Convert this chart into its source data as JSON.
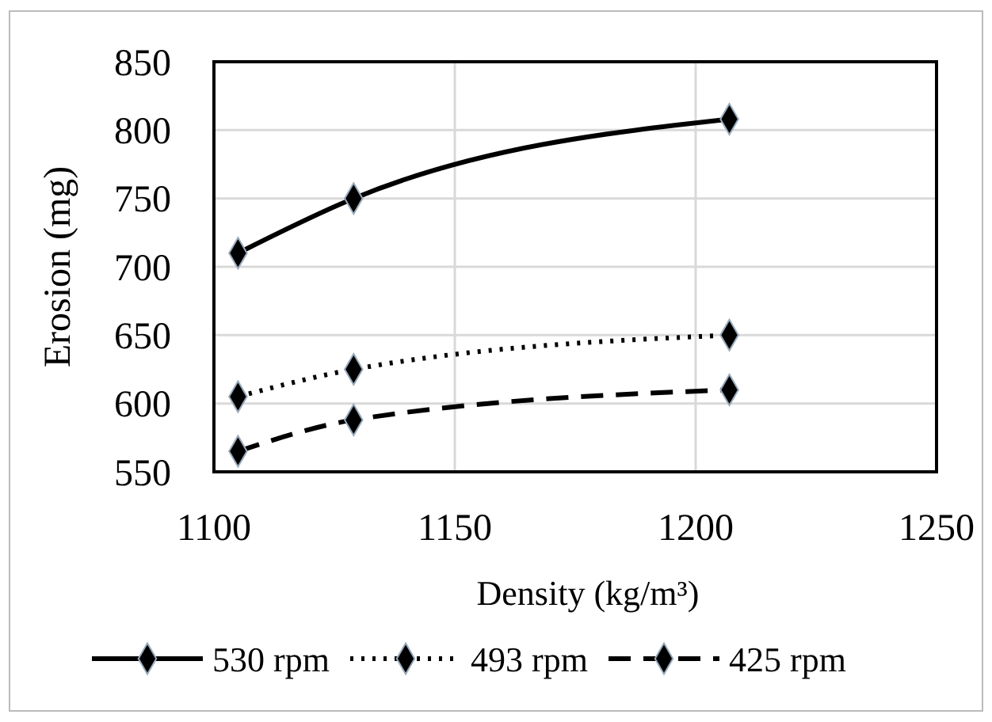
{
  "chart_data": {
    "type": "line",
    "xlabel": "Density (kg/m³)",
    "ylabel": "Erosion (mg)",
    "xlim": [
      1100,
      1250
    ],
    "xticks": [
      1100,
      1150,
      1200,
      1250
    ],
    "ylim": [
      550,
      850
    ],
    "yticks": [
      550,
      600,
      650,
      700,
      750,
      800,
      850
    ],
    "grid": true,
    "legend": "bottom",
    "marker": "diamond",
    "series": [
      {
        "name": "530 rpm",
        "color": "#000000",
        "x": [
          1105,
          1129,
          1207
        ],
        "values": [
          710,
          750,
          808
        ],
        "line_style": "solid"
      },
      {
        "name": "493 rpm",
        "color": "#000000",
        "x": [
          1105,
          1129,
          1207
        ],
        "values": [
          605,
          625,
          650
        ],
        "line_style": "dotted"
      },
      {
        "name": "425 rpm",
        "color": "#000000",
        "x": [
          1105,
          1129,
          1207
        ],
        "values": [
          565,
          588,
          610
        ],
        "line_style": "dashed"
      }
    ]
  }
}
